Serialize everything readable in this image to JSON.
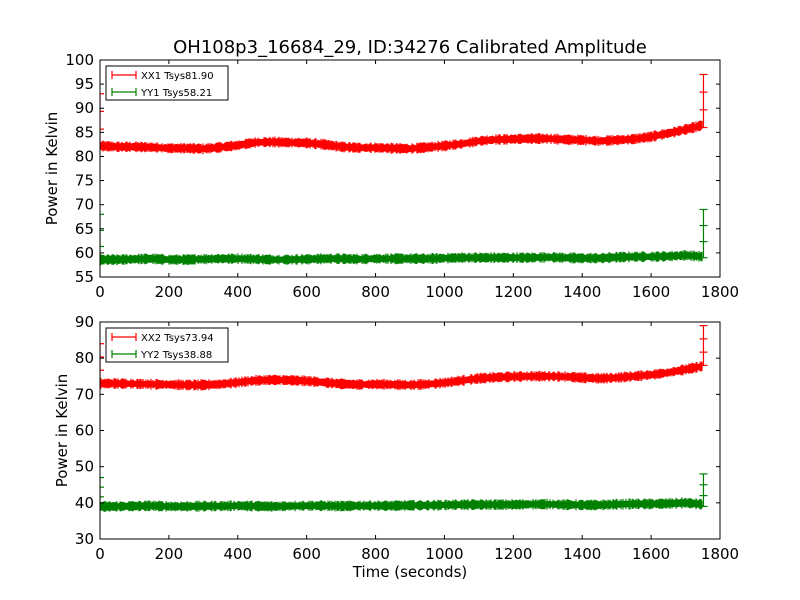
{
  "figure": {
    "title": "OH108p3_16684_29, ID:34276 Calibrated Amplitude"
  },
  "colors": {
    "xx": "#ff0000",
    "yy": "#008000",
    "axes": "#000000",
    "background": "#ffffff"
  },
  "chart_data": [
    {
      "type": "line",
      "title": "OH108p3_16684_29, ID:34276 Calibrated Amplitude",
      "xlabel": "",
      "ylabel": "Power in Kelvin",
      "xlim": [
        0,
        1800
      ],
      "ylim": [
        55,
        100
      ],
      "xticks": [
        0,
        200,
        400,
        600,
        800,
        1000,
        1200,
        1400,
        1600,
        1800
      ],
      "yticks": [
        55,
        60,
        65,
        70,
        75,
        80,
        85,
        90,
        95,
        100
      ],
      "grid": false,
      "legend_position": "top-left",
      "series": [
        {
          "name": "XX1 Tsys81.90",
          "color": "#ff0000",
          "marker": "+",
          "x": [
            0,
            50,
            100,
            150,
            200,
            250,
            300,
            350,
            400,
            450,
            500,
            550,
            600,
            650,
            700,
            750,
            800,
            850,
            900,
            950,
            1000,
            1050,
            1100,
            1150,
            1200,
            1250,
            1300,
            1350,
            1400,
            1450,
            1500,
            1550,
            1600,
            1650,
            1700,
            1740,
            1750
          ],
          "y": [
            82.2,
            82.0,
            82.0,
            81.9,
            81.7,
            81.7,
            81.6,
            81.9,
            82.3,
            82.9,
            83.0,
            82.9,
            82.8,
            82.5,
            82.0,
            81.8,
            81.8,
            81.7,
            81.6,
            81.9,
            82.2,
            82.6,
            83.2,
            83.5,
            83.6,
            83.7,
            83.7,
            83.5,
            83.4,
            83.2,
            83.4,
            83.6,
            84.1,
            84.8,
            85.6,
            86.3,
            86.6
          ],
          "spikes": [
            {
              "x": 0,
              "y_min": 82,
              "y_max": 93
            },
            {
              "x": 1752,
              "y_min": 86,
              "y_max": 97
            }
          ]
        },
        {
          "name": "YY1 Tsys58.21",
          "color": "#008000",
          "marker": "+",
          "x": [
            0,
            50,
            100,
            150,
            200,
            250,
            300,
            350,
            400,
            450,
            500,
            550,
            600,
            650,
            700,
            750,
            800,
            850,
            900,
            950,
            1000,
            1050,
            1100,
            1150,
            1200,
            1250,
            1300,
            1350,
            1400,
            1450,
            1500,
            1550,
            1600,
            1650,
            1700,
            1740,
            1750
          ],
          "y": [
            58.6,
            58.6,
            58.7,
            58.8,
            58.6,
            58.6,
            58.7,
            58.8,
            58.8,
            58.7,
            58.6,
            58.6,
            58.7,
            58.8,
            58.8,
            58.7,
            58.8,
            58.8,
            58.8,
            58.8,
            58.9,
            59.0,
            59.0,
            59.0,
            59.0,
            59.0,
            59.1,
            59.0,
            58.9,
            58.9,
            59.1,
            59.2,
            59.2,
            59.3,
            59.5,
            59.3,
            59.2
          ],
          "spikes": [
            {
              "x": 0,
              "y_min": 58,
              "y_max": 68
            },
            {
              "x": 1752,
              "y_min": 59,
              "y_max": 69
            }
          ]
        }
      ]
    },
    {
      "type": "line",
      "title": "",
      "xlabel": "Time (seconds)",
      "ylabel": "Power in Kelvin",
      "xlim": [
        0,
        1800
      ],
      "ylim": [
        30,
        90
      ],
      "xticks": [
        0,
        200,
        400,
        600,
        800,
        1000,
        1200,
        1400,
        1600,
        1800
      ],
      "yticks": [
        30,
        40,
        50,
        60,
        70,
        80,
        90
      ],
      "grid": false,
      "legend_position": "top-left",
      "series": [
        {
          "name": "XX2 Tsys73.94",
          "color": "#ff0000",
          "marker": "+",
          "x": [
            0,
            50,
            100,
            150,
            200,
            250,
            300,
            350,
            400,
            450,
            500,
            550,
            600,
            650,
            700,
            750,
            800,
            850,
            900,
            950,
            1000,
            1050,
            1100,
            1150,
            1200,
            1250,
            1300,
            1350,
            1400,
            1450,
            1500,
            1550,
            1600,
            1650,
            1700,
            1740,
            1750
          ],
          "y": [
            73.0,
            73.0,
            72.9,
            72.8,
            72.7,
            72.6,
            72.6,
            72.8,
            73.3,
            73.8,
            74.0,
            73.9,
            73.7,
            73.3,
            72.9,
            72.7,
            72.8,
            72.7,
            72.6,
            72.8,
            73.2,
            73.8,
            74.4,
            74.7,
            74.9,
            75.0,
            75.0,
            74.9,
            74.6,
            74.4,
            74.6,
            75.0,
            75.4,
            76.0,
            76.9,
            77.6,
            77.8
          ],
          "spikes": [
            {
              "x": 0,
              "y_min": 73,
              "y_max": 84
            },
            {
              "x": 1752,
              "y_min": 78,
              "y_max": 89
            }
          ]
        },
        {
          "name": "YY2 Tsys38.88",
          "color": "#008000",
          "marker": "+",
          "x": [
            0,
            50,
            100,
            150,
            200,
            250,
            300,
            350,
            400,
            450,
            500,
            550,
            600,
            650,
            700,
            750,
            800,
            850,
            900,
            950,
            1000,
            1050,
            1100,
            1150,
            1200,
            1250,
            1300,
            1350,
            1400,
            1450,
            1500,
            1550,
            1600,
            1650,
            1700,
            1740,
            1750
          ],
          "y": [
            39.0,
            39.0,
            39.1,
            39.2,
            39.0,
            39.0,
            39.1,
            39.1,
            39.2,
            39.1,
            39.0,
            39.1,
            39.2,
            39.2,
            39.1,
            39.2,
            39.2,
            39.2,
            39.3,
            39.3,
            39.4,
            39.5,
            39.5,
            39.5,
            39.5,
            39.6,
            39.6,
            39.5,
            39.4,
            39.4,
            39.6,
            39.7,
            39.7,
            39.8,
            40.0,
            39.7,
            39.5
          ],
          "spikes": [
            {
              "x": 0,
              "y_min": 39,
              "y_max": 47
            },
            {
              "x": 1752,
              "y_min": 39,
              "y_max": 48
            }
          ]
        }
      ]
    }
  ]
}
